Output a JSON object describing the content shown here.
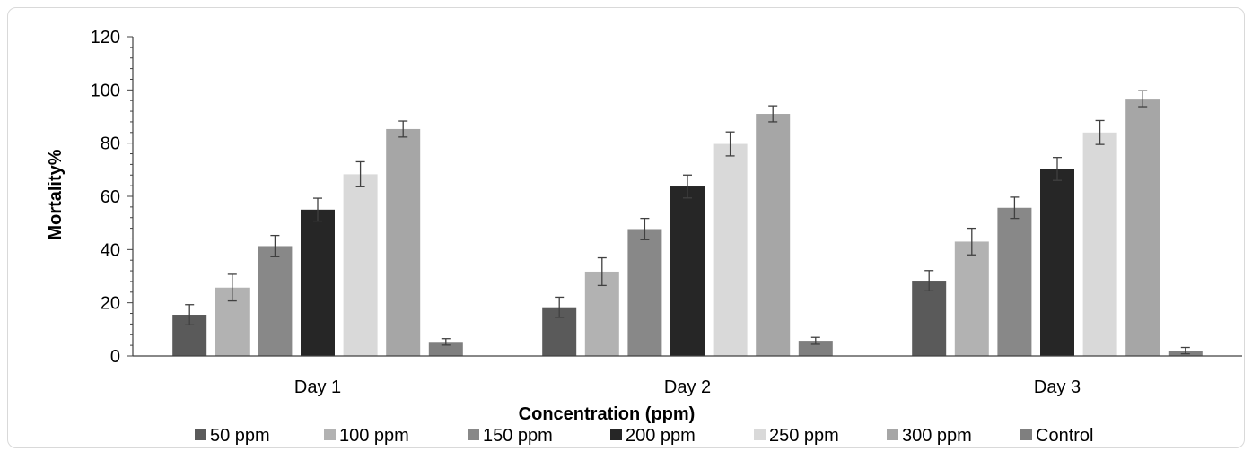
{
  "chart_data": {
    "type": "bar",
    "title": "",
    "xlabel": "Concentration (ppm)",
    "ylabel": "Mortality%",
    "ylim": [
      0,
      120
    ],
    "yticks": [
      "0",
      "20",
      "40",
      "60",
      "80",
      "100",
      "120"
    ],
    "categories": [
      "Day 1",
      "Day 2",
      "Day 3"
    ],
    "series": [
      {
        "name": "50 ppm",
        "color": "#5a5a5a",
        "values": [
          15.5,
          18.3,
          28.3
        ],
        "errors": [
          3.8,
          3.8,
          3.8
        ]
      },
      {
        "name": "100 ppm",
        "color": "#b2b2b2",
        "values": [
          25.7,
          31.7,
          43.0
        ],
        "errors": [
          5.0,
          5.2,
          5.0
        ]
      },
      {
        "name": "150 ppm",
        "color": "#888888",
        "values": [
          41.3,
          47.7,
          55.7
        ],
        "errors": [
          4.0,
          4.0,
          4.0
        ]
      },
      {
        "name": "200 ppm",
        "color": "#262626",
        "values": [
          55.0,
          63.7,
          70.3
        ],
        "errors": [
          4.3,
          4.3,
          4.3
        ]
      },
      {
        "name": "250 ppm",
        "color": "#d9d9d9",
        "values": [
          68.3,
          79.7,
          84.0
        ],
        "errors": [
          4.7,
          4.5,
          4.5
        ]
      },
      {
        "name": "300 ppm",
        "color": "#a6a6a6",
        "values": [
          85.3,
          91.0,
          96.7
        ],
        "errors": [
          3.0,
          3.0,
          3.0
        ]
      },
      {
        "name": "Control",
        "color": "#7f7f7f",
        "values": [
          5.3,
          5.7,
          2.0
        ],
        "errors": [
          1.2,
          1.3,
          1.2
        ]
      }
    ],
    "grid": false,
    "legend_position": "bottom"
  }
}
